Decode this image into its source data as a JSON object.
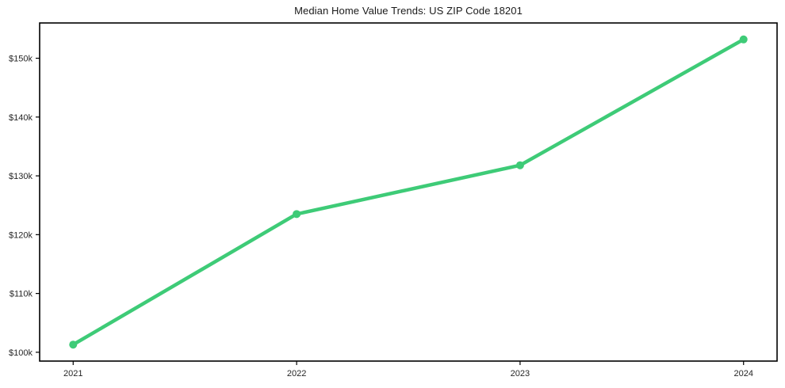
{
  "figure": {
    "background_color": "#ffffff",
    "frame_color": "#000000",
    "text_color": "#262626"
  },
  "chart_data": {
    "type": "line",
    "title": "Median Home Value Trends: US ZIP Code 18201",
    "xlabel": "",
    "ylabel": "",
    "x": [
      2021,
      2022,
      2023,
      2024
    ],
    "x_tick_labels": [
      "2021",
      "2022",
      "2023",
      "2024"
    ],
    "values": [
      101300,
      123500,
      131800,
      153200
    ],
    "y_ticks": [
      100000,
      110000,
      120000,
      130000,
      140000,
      150000
    ],
    "y_tick_labels": [
      "$100k",
      "$110k",
      "$120k",
      "$130k",
      "$140k",
      "$150k"
    ],
    "xlim": [
      2020.85,
      2024.15
    ],
    "ylim": [
      98500,
      156000
    ],
    "grid": false,
    "legend_position": "none",
    "line_color": "#3ecb77",
    "marker": "circle"
  }
}
